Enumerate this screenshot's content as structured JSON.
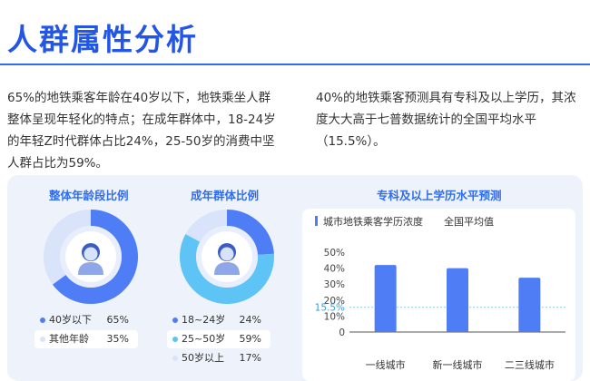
{
  "page": {
    "title": "人群属性分析",
    "left_text": "65%的地铁乘客年龄在40岁以下，地铁乘坐人群整体呈现年轻化的特点；在成年群体中，18-24岁的年轻Z时代群体占比24%，25-50岁的消费中坚人群占比为59%。",
    "right_text": "40%的地铁乘客预测具有专科及以上学历，其浓度大大高于七普数据统计的全国平均水平（15.5%）。"
  },
  "panels": {
    "age_title": "整体年龄段比例",
    "adult_title": "成年群体比例",
    "edu_title": "专科及以上学历水平预测"
  },
  "colors": {
    "accent": "#2f6cf0",
    "primary_bar": "#4f7df5",
    "light_blue": "#5ec3f5",
    "pale": "#d9e4fb",
    "reference": "#7fd1f0"
  },
  "icons": [
    "person-avatar-icon",
    "person-avatar-icon"
  ],
  "chart_data": [
    {
      "type": "pie",
      "title": "整体年龄段比例",
      "categories": [
        "40岁以下",
        "其他年龄"
      ],
      "labels": [
        "65%",
        "35%"
      ],
      "values": [
        65,
        35
      ],
      "colors": [
        "#4f7df5",
        "#d9e4fb"
      ]
    },
    {
      "type": "pie",
      "title": "成年群体比例",
      "categories": [
        "18~24岁",
        "25~50岁",
        "50岁以上"
      ],
      "labels": [
        "24%",
        "59%",
        "17%"
      ],
      "values": [
        24,
        59,
        17
      ],
      "colors": [
        "#4f7df5",
        "#5ec3f5",
        "#d9e4fb"
      ]
    },
    {
      "type": "bar",
      "title": "专科及以上学历水平预测",
      "categories": [
        "一线城市",
        "新一线城市",
        "二三线城市"
      ],
      "series": [
        {
          "name": "城市地铁乘客学历浓度",
          "values": [
            42,
            40,
            34
          ]
        },
        {
          "name": "全国平均值",
          "values": [
            15.5,
            15.5,
            15.5
          ]
        }
      ],
      "reference_label": "15.5%",
      "y_ticks": [
        "50%",
        "40%",
        "30%",
        "20%",
        "10%",
        "0"
      ],
      "ylim": [
        0,
        50
      ],
      "grid": false,
      "legend": "top-left"
    }
  ]
}
